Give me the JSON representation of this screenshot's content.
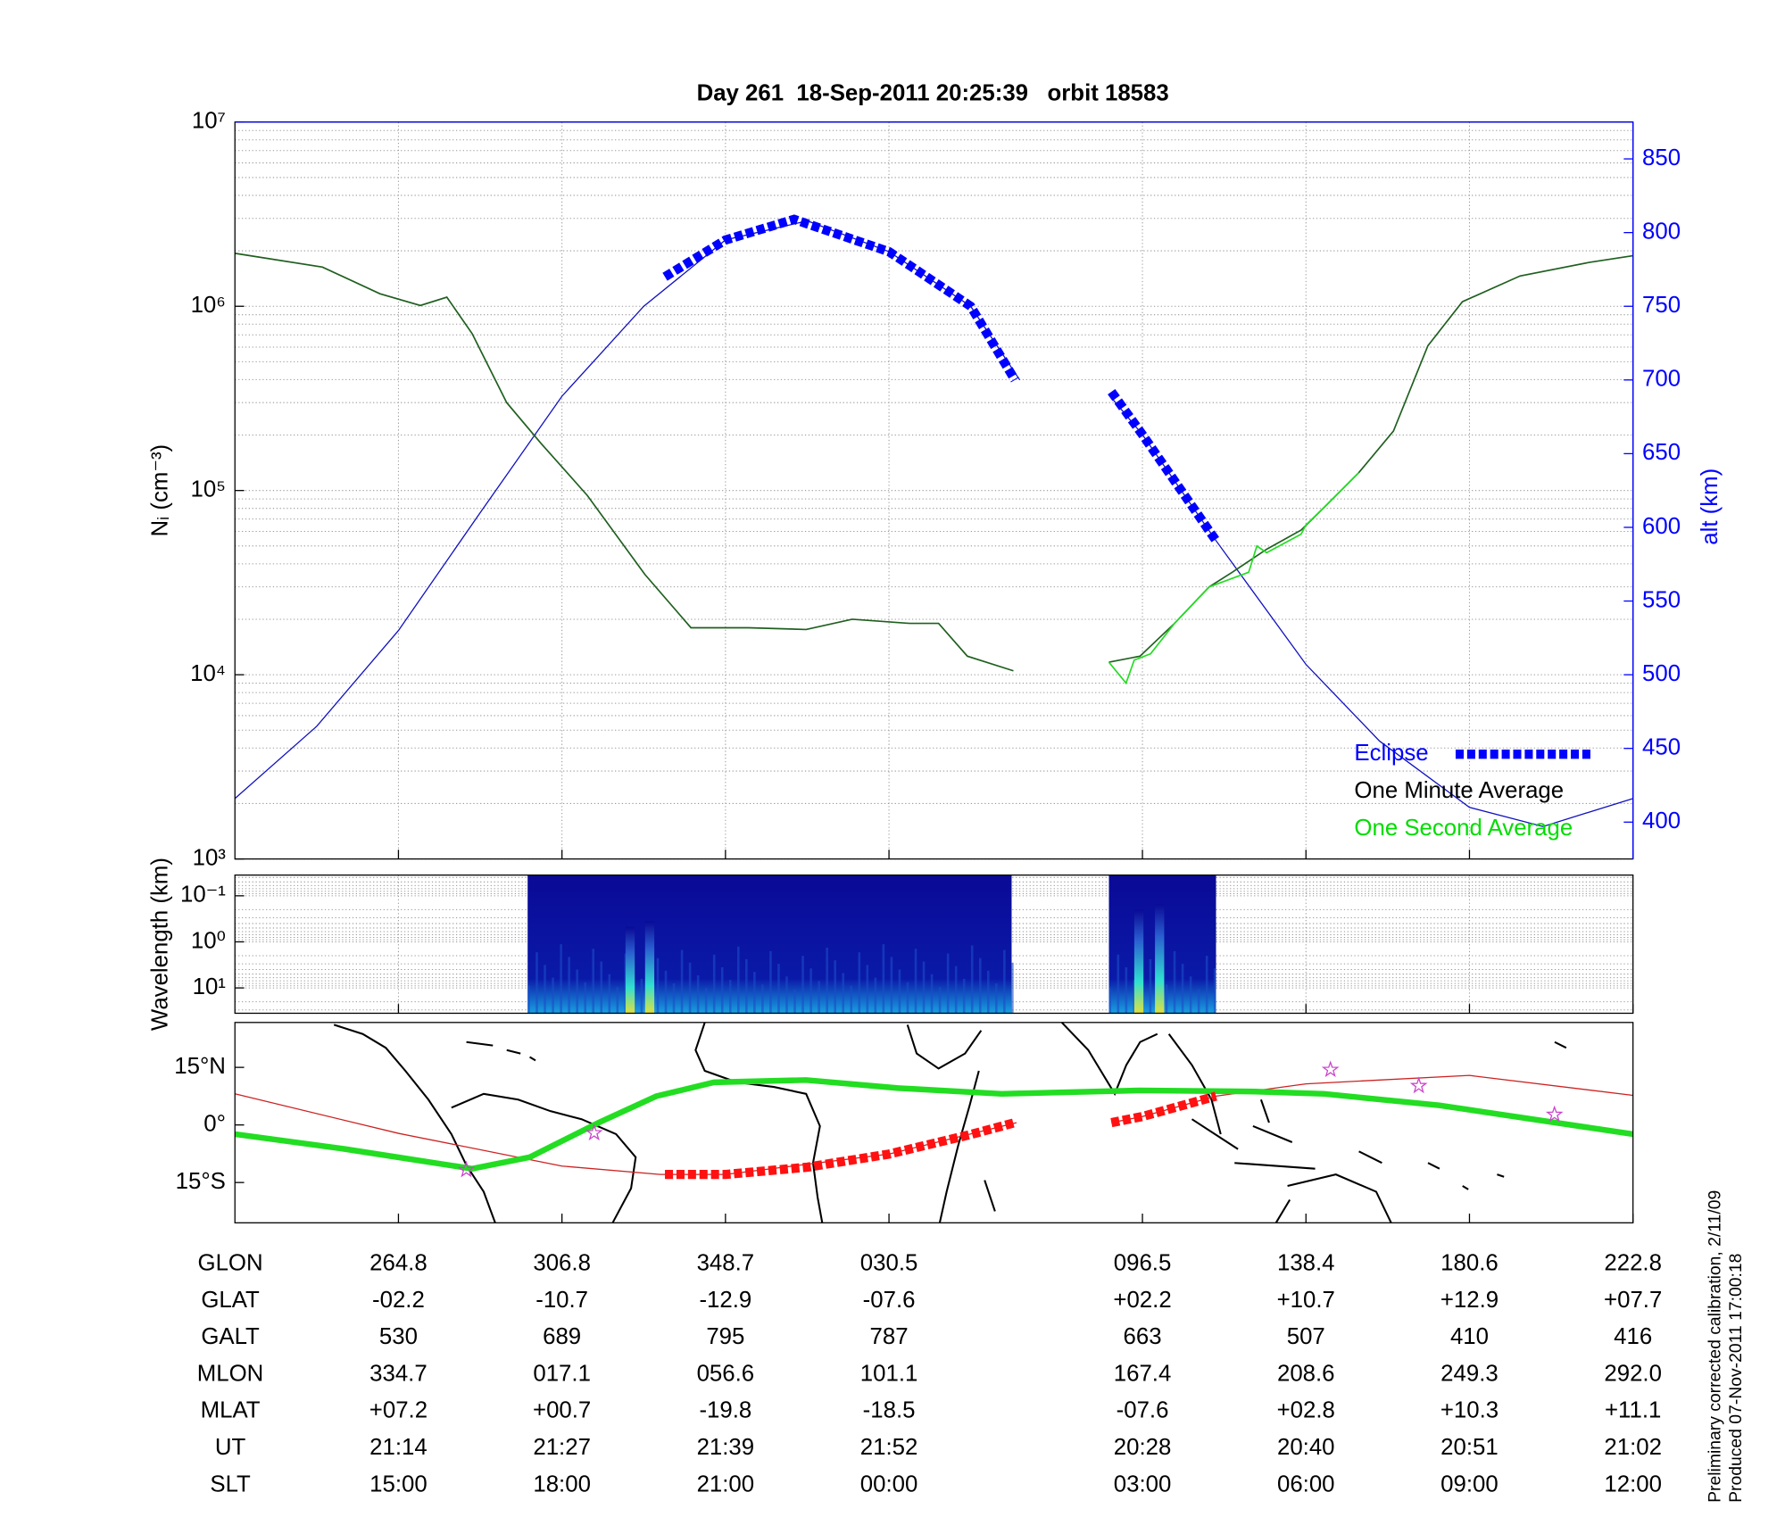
{
  "chart_data": [
    {
      "type": "line",
      "title": "Day 261  18-Sep-2011 20:25:39   orbit 18583",
      "ylabel": "Nᵢ (cm⁻³)",
      "y2label": "alt (km)",
      "log": true,
      "grid": true,
      "legend": "lower right",
      "xlim": [
        0,
        8.55
      ],
      "xticks": [
        1,
        2,
        3,
        4,
        5.55,
        6.55,
        7.55,
        8.55
      ],
      "ylim": [
        1000,
        10000000
      ],
      "yticks": [
        {
          "value": 1000,
          "label": "10³"
        },
        {
          "value": 10000,
          "label": "10⁴"
        },
        {
          "value": 100000,
          "label": "10⁵"
        },
        {
          "value": 1000000,
          "label": "10⁶"
        },
        {
          "value": 10000000,
          "label": "10⁷"
        }
      ],
      "yminor": [
        2000,
        3000,
        4000,
        5000,
        6000,
        7000,
        8000,
        9000,
        20000,
        30000,
        40000,
        50000,
        60000,
        70000,
        80000,
        90000,
        200000,
        300000,
        400000,
        500000,
        600000,
        700000,
        800000,
        900000,
        2000000,
        3000000,
        4000000,
        5000000,
        6000000,
        7000000,
        8000000,
        9000000
      ],
      "y2lim": [
        375,
        875
      ],
      "y2ticks": [
        400,
        450,
        500,
        550,
        600,
        650,
        700,
        750,
        800,
        850
      ],
      "y2color": "#0000ff",
      "series": [
        {
          "color": "#1010c0",
          "axis": "y2",
          "width": 1,
          "x": [
            0,
            0.5,
            1,
            1.5,
            2,
            2.5,
            3,
            3.5,
            4,
            4.5,
            4.8,
            null,
            5.345,
            5.55,
            6.0,
            6.55,
            7.0,
            7.55,
            8.0,
            8.55
          ],
          "values": [
            416,
            465,
            530,
            610,
            689,
            750,
            795,
            808,
            787,
            750,
            700,
            null,
            690,
            663,
            591,
            507,
            455,
            410,
            397,
            416
          ]
        },
        {
          "name": "Eclipse",
          "color": "#0000ff",
          "label_color": "#0000ff",
          "axis": "y2",
          "width": 8,
          "dash": "7 3",
          "x": [
            2.63,
            3,
            3.42,
            4,
            4.5,
            4.77,
            null,
            5.36,
            5.55,
            6.0
          ],
          "values": [
            770,
            795,
            809,
            787,
            750,
            700,
            null,
            692,
            663,
            591
          ]
        },
        {
          "name": "One Minute Average",
          "color": "#1f5f1f",
          "label_color": "#000000",
          "width": 1.3,
          "x": [
            0,
            0.535,
            0.887,
            1.134,
            1.296,
            1.451,
            1.662,
            1.873,
            2.155,
            2.507,
            2.789,
            3.141,
            3.493,
            3.775,
            4.127,
            4.303,
            4.479,
            4.761,
            null,
            5.345,
            5.535,
            5.746,
            5.958,
            6.099,
            6.31,
            6.521,
            6.662,
            6.873,
            7.085,
            7.296,
            7.507,
            7.859,
            8.282,
            8.549
          ],
          "values": [
            1940000,
            1630000,
            1170000,
            1010000,
            1120000,
            710000,
            300000,
            180000,
            94000,
            35000,
            18000,
            18000,
            17600,
            20000,
            19000,
            19000,
            12600,
            10500,
            null,
            11700,
            12600,
            19000,
            30000,
            36000,
            48000,
            61000,
            81000,
            125000,
            210000,
            610000,
            1060000,
            1460000,
            1730000,
            1880000
          ]
        },
        {
          "name": "One Second Average",
          "color": "#22dd22",
          "label_color": "#00dd00",
          "width": 1.3,
          "x": [
            5.345,
            5.45,
            5.5,
            5.6,
            5.746,
            5.958,
            6.2,
            6.25,
            6.31,
            6.52,
            6.55,
            6.662,
            6.873
          ],
          "values": [
            11700,
            9000,
            12000,
            13000,
            19000,
            30000,
            36000,
            50000,
            46000,
            58000,
            65000,
            81000,
            125000
          ]
        }
      ]
    },
    {
      "type": "heatmap",
      "ylabel": "Wavelength (km)",
      "log": true,
      "yinvert": true,
      "grid": true,
      "xlim": [
        0,
        8.55
      ],
      "xticks": [
        1,
        2,
        3,
        4,
        5.55,
        6.55,
        7.55,
        8.55
      ],
      "ylim": [
        0.0355,
        35.5
      ],
      "yticks": [
        {
          "value": 0.1,
          "label": "10⁻¹"
        },
        {
          "value": 1,
          "label": "10⁰"
        },
        {
          "value": 10,
          "label": "10¹"
        }
      ],
      "yminor": [
        0.04,
        0.05,
        0.06,
        0.07,
        0.08,
        0.09,
        0.2,
        0.3,
        0.4,
        0.5,
        0.6,
        0.7,
        0.8,
        0.9,
        2,
        3,
        4,
        5,
        6,
        7,
        8,
        9,
        20,
        30
      ],
      "segments": [
        [
          1.79,
          4.75
        ],
        [
          5.345,
          6.0
        ]
      ],
      "color": "#06068c"
    },
    {
      "type": "map",
      "xlim": [
        0,
        8.55
      ],
      "xticks": [
        1,
        2,
        3,
        4,
        5.55,
        6.55,
        7.55,
        8.55
      ],
      "ylim": [
        -25.5,
        26.7
      ],
      "yticks": [
        {
          "value": 15,
          "label": "15°N"
        },
        {
          "value": 0,
          "label": "0°"
        },
        {
          "value": -15,
          "label": "15°S"
        }
      ],
      "series": [
        {
          "color": "#cc2222",
          "width": 1,
          "x": [
            0,
            1,
            2,
            2.6,
            3,
            4,
            4.78,
            null,
            5.36,
            5.55,
            6.0,
            6.55,
            7.55,
            8.55
          ],
          "values": [
            8.1,
            -2.2,
            -10.7,
            -12.9,
            -12.9,
            -7.6,
            0.6,
            null,
            0.6,
            2.2,
            7.5,
            10.7,
            12.9,
            7.7
          ]
        },
        {
          "color": "#22dd22",
          "width": 5,
          "x": [
            0,
            0.676,
            1.451,
            1.803,
            2.225,
            2.577,
            2.93,
            3.493,
            4.056,
            4.69,
            5.535,
            6.239,
            6.662,
            7.366,
            8.549
          ],
          "values": [
            -2.4,
            -6.3,
            -11.4,
            -8.4,
            0.6,
            7.5,
            11.1,
            11.7,
            9.6,
            8.1,
            9,
            8.7,
            8.1,
            5.1,
            -2.4
          ]
        },
        {
          "color": "#ff1111",
          "width": 8,
          "dash": "7 3",
          "x": [
            2.63,
            3,
            3.5,
            4,
            4.5,
            4.77,
            null,
            5.36,
            5.55,
            6.0
          ],
          "values": [
            -12.9,
            -12.9,
            -11,
            -7.6,
            -2.5,
            0.6,
            null,
            0.6,
            2.2,
            7.5
          ]
        }
      ],
      "stars": {
        "color": "#cc44cc",
        "x": [
          1.415,
          2.197,
          6.7,
          7.24,
          8.07
        ],
        "values": [
          -11.7,
          -2.1,
          14.4,
          10.2,
          2.7
        ]
      }
    }
  ],
  "table": {
    "rows": [
      {
        "label": "GLON",
        "values": [
          "264.8",
          "306.8",
          "348.7",
          "030.5",
          "096.5",
          "138.4",
          "180.6",
          "222.8"
        ]
      },
      {
        "label": "GLAT",
        "values": [
          "-02.2",
          "-10.7",
          "-12.9",
          "-07.6",
          "+02.2",
          "+10.7",
          "+12.9",
          "+07.7"
        ]
      },
      {
        "label": "GALT",
        "values": [
          "530",
          "689",
          "795",
          "787",
          "663",
          "507",
          "410",
          "416"
        ]
      },
      {
        "label": "MLON",
        "values": [
          "334.7",
          "017.1",
          "056.6",
          "101.1",
          "167.4",
          "208.6",
          "249.3",
          "292.0"
        ]
      },
      {
        "label": "MLAT",
        "values": [
          "+07.2",
          "+00.7",
          "-19.8",
          "-18.5",
          "-07.6",
          "+02.8",
          "+10.3",
          "+11.1"
        ]
      },
      {
        "label": "UT",
        "values": [
          "21:14",
          "21:27",
          "21:39",
          "21:52",
          "20:28",
          "20:40",
          "20:51",
          "21:02"
        ]
      },
      {
        "label": "SLT",
        "values": [
          "15:00",
          "18:00",
          "21:00",
          "00:00",
          "03:00",
          "06:00",
          "09:00",
          "12:00"
        ]
      }
    ]
  },
  "notes": [
    "Preliminary corrected calibration, 2/11/09",
    "Produced 07-Nov-2011 17:00:18"
  ]
}
